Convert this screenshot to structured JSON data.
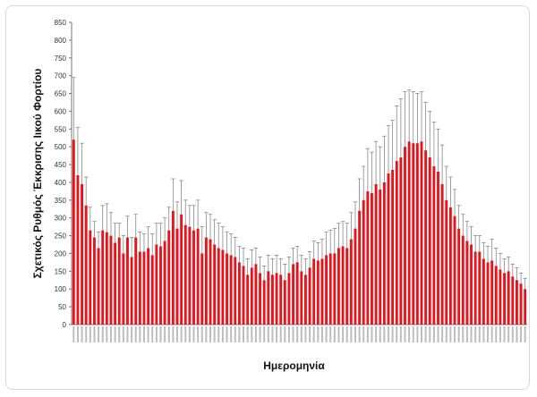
{
  "chart_data": {
    "type": "bar",
    "title": "",
    "xlabel": "Ημερομηνία",
    "ylabel": "Σχετικός Ρυθμός Έκκρισης Ιικού Φορτίου",
    "ylim": [
      0,
      850
    ],
    "yticks": [
      0,
      50,
      100,
      150,
      200,
      250,
      300,
      350,
      400,
      450,
      500,
      550,
      600,
      650,
      700,
      750,
      800,
      850
    ],
    "grid": false,
    "bar_color": "#e8121a",
    "error_bar_color": "#888888",
    "values": [
      520,
      420,
      395,
      335,
      265,
      245,
      215,
      265,
      260,
      250,
      230,
      245,
      200,
      245,
      190,
      245,
      205,
      205,
      215,
      195,
      225,
      220,
      235,
      265,
      320,
      270,
      310,
      280,
      275,
      265,
      270,
      200,
      245,
      240,
      225,
      215,
      210,
      200,
      195,
      190,
      175,
      165,
      140,
      160,
      170,
      145,
      125,
      150,
      140,
      145,
      140,
      125,
      145,
      170,
      175,
      150,
      140,
      160,
      185,
      180,
      185,
      195,
      200,
      200,
      215,
      220,
      215,
      240,
      270,
      320,
      350,
      375,
      370,
      395,
      380,
      400,
      425,
      435,
      460,
      470,
      500,
      515,
      510,
      510,
      515,
      490,
      470,
      445,
      430,
      395,
      350,
      330,
      305,
      270,
      250,
      235,
      225,
      205,
      205,
      185,
      175,
      180,
      165,
      155,
      145,
      150,
      135,
      125,
      115,
      100
    ],
    "errors": [
      175,
      135,
      115,
      80,
      65,
      45,
      45,
      70,
      80,
      65,
      55,
      40,
      50,
      60,
      55,
      65,
      55,
      50,
      60,
      60,
      60,
      65,
      65,
      65,
      90,
      75,
      95,
      70,
      60,
      70,
      80,
      75,
      70,
      70,
      70,
      70,
      65,
      60,
      60,
      55,
      45,
      50,
      45,
      50,
      45,
      45,
      40,
      45,
      45,
      50,
      45,
      45,
      45,
      45,
      45,
      45,
      45,
      45,
      50,
      50,
      55,
      65,
      65,
      70,
      70,
      70,
      70,
      75,
      75,
      90,
      95,
      120,
      115,
      120,
      120,
      130,
      135,
      140,
      155,
      165,
      155,
      145,
      145,
      140,
      140,
      135,
      130,
      125,
      120,
      110,
      95,
      85,
      75,
      65,
      60,
      55,
      50,
      45,
      45,
      45,
      45,
      60,
      50,
      45,
      40,
      40,
      35,
      35,
      30,
      30
    ],
    "x_tick_labels_legible": false
  }
}
